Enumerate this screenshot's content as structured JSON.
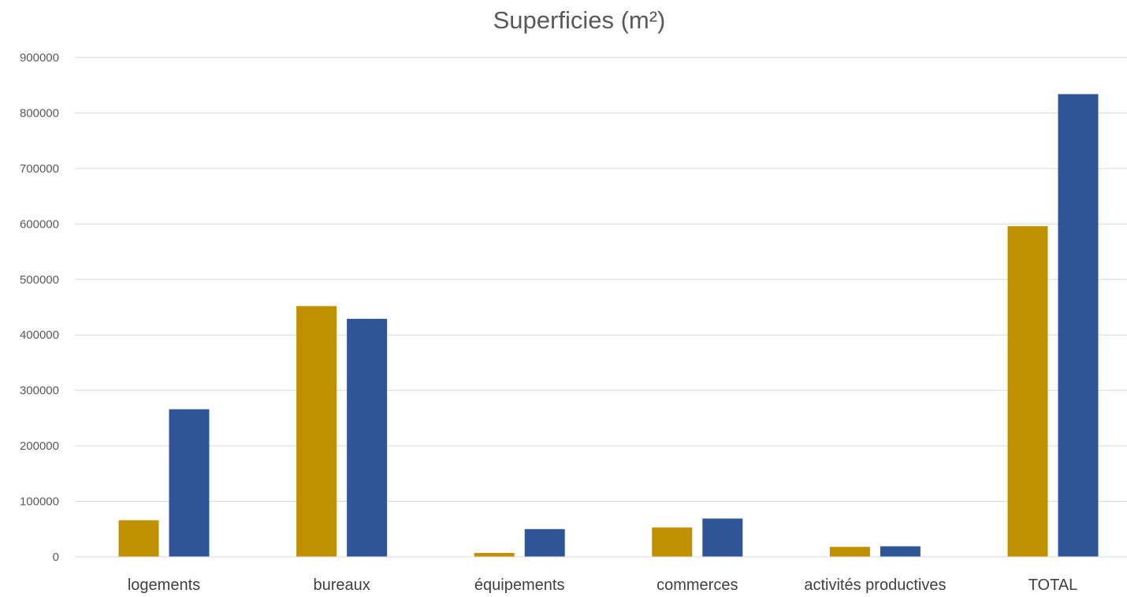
{
  "chart_data": {
    "type": "bar",
    "title": "Superficies (m²)",
    "xlabel": "",
    "ylabel": "",
    "categories": [
      "logements",
      "bureaux",
      "équipements",
      "commerces",
      "activités productives",
      "TOTAL"
    ],
    "series": [
      {
        "color": "#BF9000",
        "values": [
          66000,
          452000,
          7000,
          53000,
          18000,
          596000
        ]
      },
      {
        "color": "#2F5597",
        "values": [
          266000,
          429000,
          50000,
          69000,
          19000,
          834000
        ]
      }
    ],
    "ylim": [
      0,
      900000
    ],
    "yticks": [
      0,
      100000,
      200000,
      300000,
      400000,
      500000,
      600000,
      700000,
      800000,
      900000
    ],
    "ytick_labels": [
      "0",
      "100000",
      "200000",
      "300000",
      "400000",
      "500000",
      "600000",
      "700000",
      "800000",
      "900000"
    ],
    "grid": true,
    "legend": "none"
  }
}
